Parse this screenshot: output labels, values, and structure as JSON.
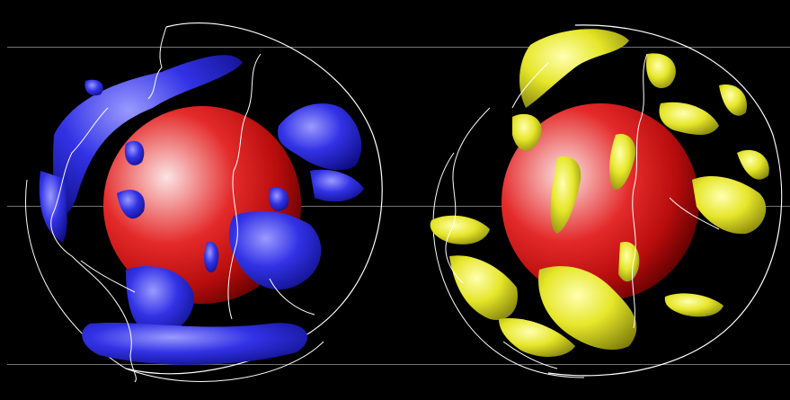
{
  "figure": {
    "background": "#000000",
    "panels": [
      {
        "id": "left",
        "core_color": "#e01818",
        "feature_color": "#2a2ae0",
        "feature_highlight": "#8c8cff"
      },
      {
        "id": "right",
        "core_color": "#e01818",
        "feature_color": "#d8d820",
        "feature_highlight": "#ffff9a"
      }
    ],
    "outline_color": "#ffffff",
    "guide_line_color": "#9a9a9a"
  }
}
